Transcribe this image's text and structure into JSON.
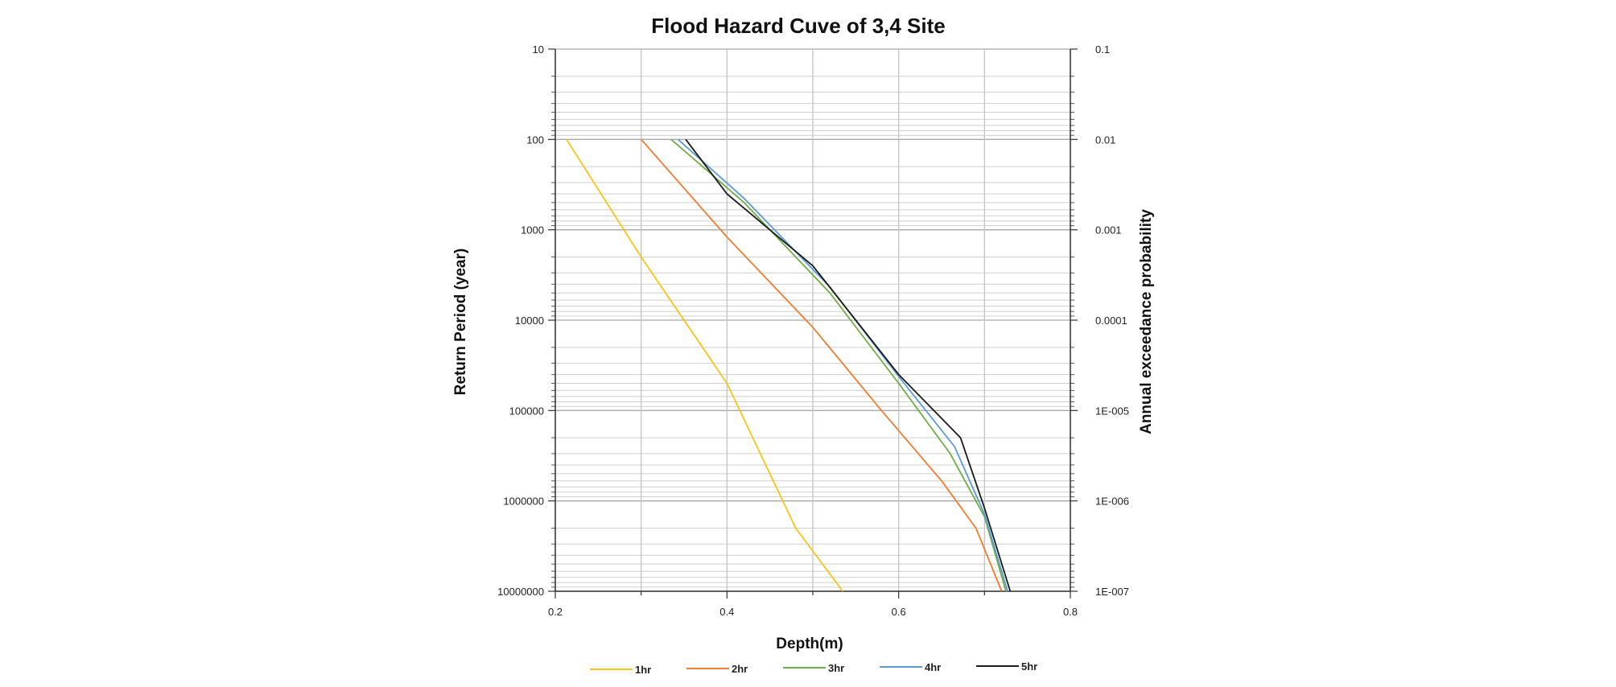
{
  "chart_data": {
    "type": "line",
    "title": "Flood Hazard Cuve of 3,4 Site",
    "xlabel": "Depth(m)",
    "ylabel": "Return Period (year)",
    "y2label": "Annual exceedance probability",
    "xlim": [
      0.2,
      0.8
    ],
    "ylim": [
      10,
      10000000
    ],
    "yscale": "log",
    "grid": true,
    "legend_position": "bottom",
    "x_ticks": [
      "0.2",
      "0.4",
      "0.6",
      "0.8"
    ],
    "y_ticks": [
      "10",
      "100",
      "1000",
      "10000",
      "100000",
      "1000000",
      "10000000"
    ],
    "y2_ticks": [
      "0.1",
      "0.01",
      "0.001",
      "0.0001",
      "1E-005",
      "1E-006",
      "1E-007"
    ],
    "series": [
      {
        "name": "1hr",
        "color": "#f5c518",
        "x": [
          0.213,
          0.3,
          0.4,
          0.48,
          0.535
        ],
        "y": [
          100,
          2000,
          50000,
          2000000,
          10000000
        ]
      },
      {
        "name": "2hr",
        "color": "#ed7d31",
        "x": [
          0.3,
          0.4,
          0.5,
          0.58,
          0.65,
          0.69,
          0.72
        ],
        "y": [
          100,
          1200,
          12000,
          100000,
          600000,
          2000000,
          10000000
        ]
      },
      {
        "name": "3hr",
        "color": "#70ad47",
        "x": [
          0.335,
          0.42,
          0.52,
          0.6,
          0.66,
          0.7,
          0.725
        ],
        "y": [
          100,
          500,
          5000,
          50000,
          300000,
          1500000,
          10000000
        ]
      },
      {
        "name": "4hr",
        "color": "#5b9bd5",
        "x": [
          0.343,
          0.42,
          0.52,
          0.6,
          0.665,
          0.7,
          0.727
        ],
        "y": [
          100,
          450,
          4300,
          42000,
          250000,
          1400000,
          10000000
        ]
      },
      {
        "name": "5hr",
        "color": "#1a1a1a",
        "x": [
          0.352,
          0.4,
          0.5,
          0.6,
          0.672,
          0.7,
          0.73
        ],
        "y": [
          100,
          400,
          2500,
          40000,
          200000,
          1200000,
          10000000
        ]
      }
    ]
  }
}
